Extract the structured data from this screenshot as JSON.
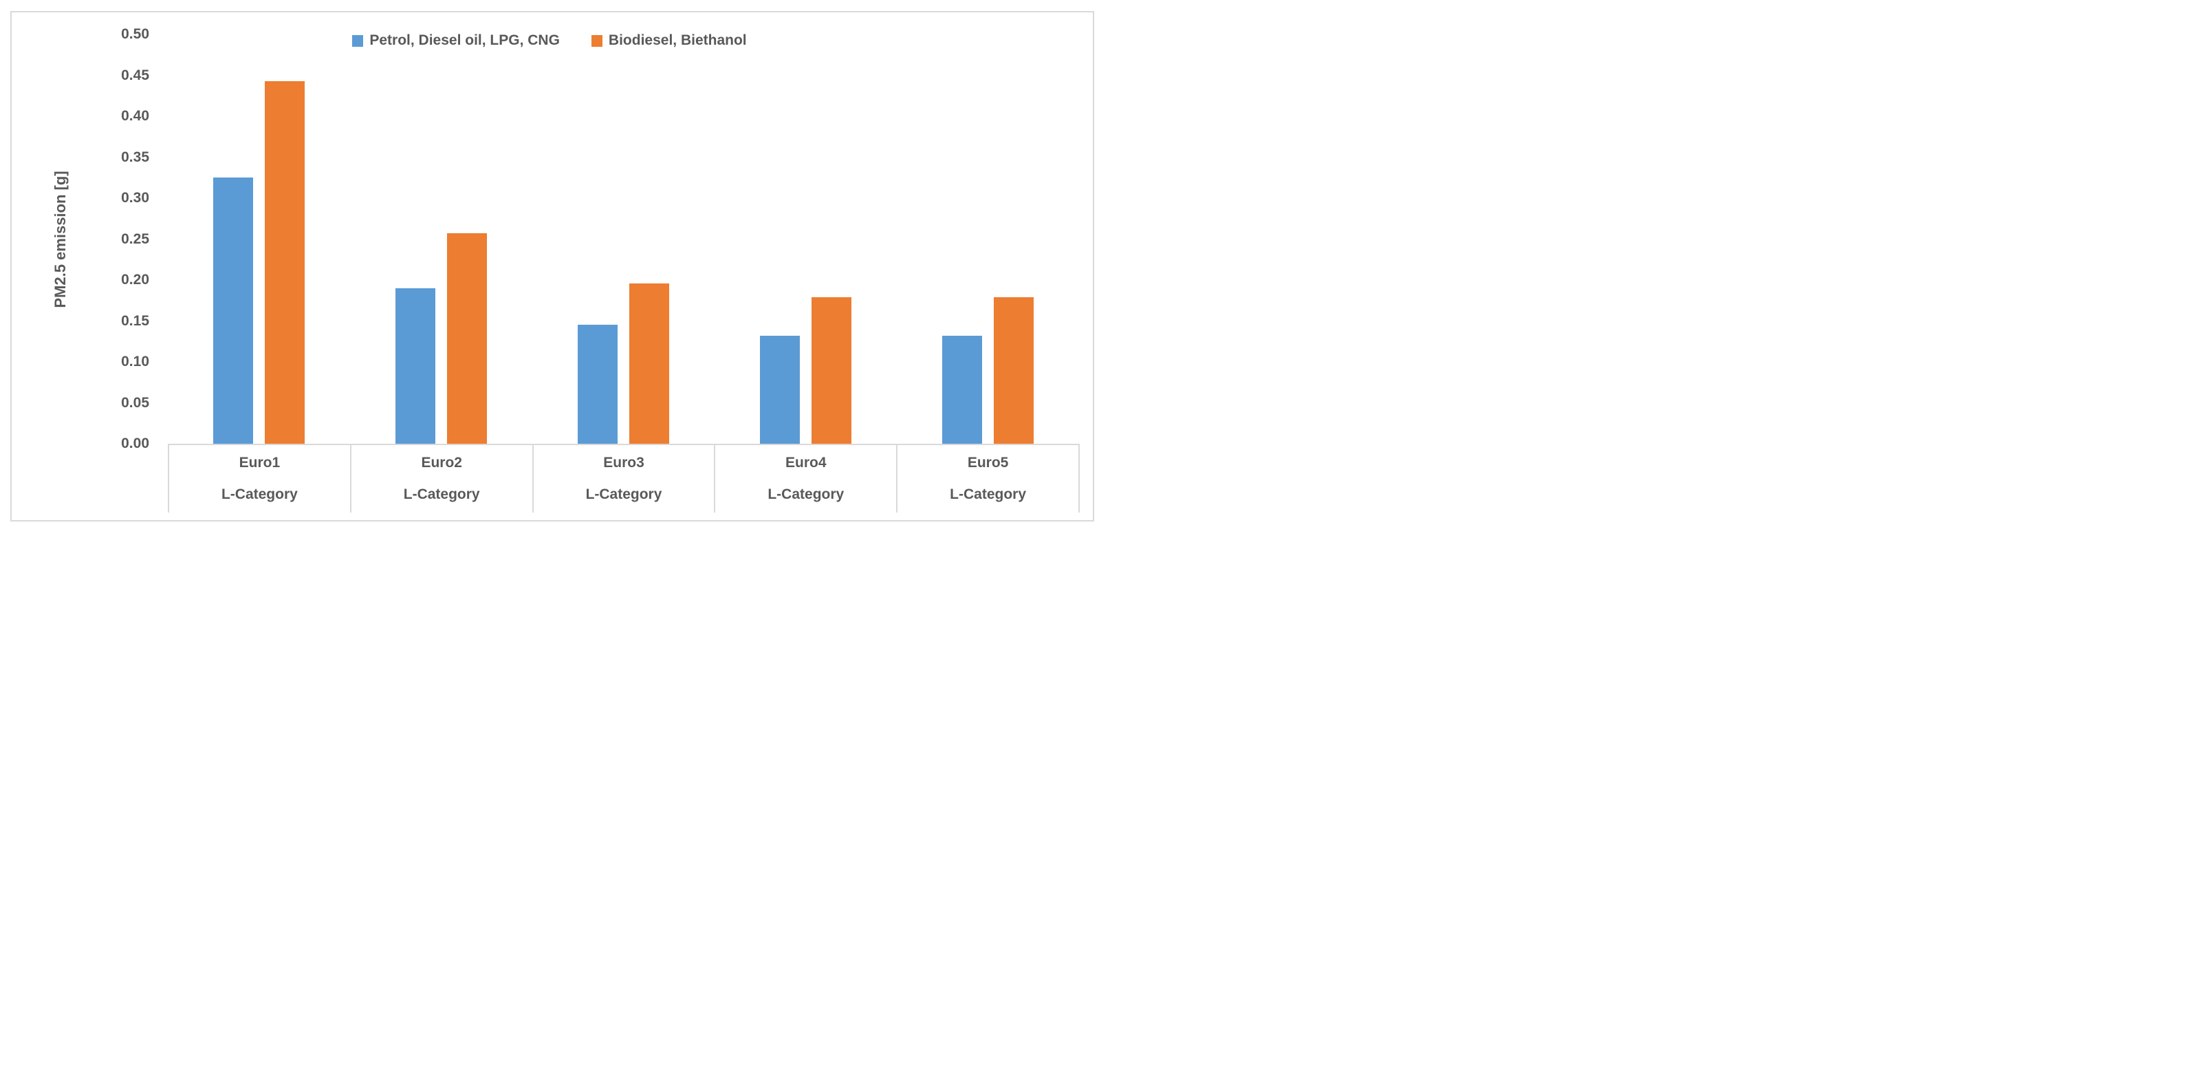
{
  "chart_data": {
    "type": "bar",
    "title": "",
    "ylabel": "PM2.5 emission [g]",
    "categories": [
      "Euro1",
      "Euro2",
      "Euro3",
      "Euro4",
      "Euro5"
    ],
    "category_sublabels": [
      "L-Category",
      "L-Category",
      "L-Category",
      "L-Category",
      "L-Category"
    ],
    "series": [
      {
        "name": "Petrol, Diesel oil, LPG, CNG",
        "color": "#5B9BD5",
        "values": [
          0.325,
          0.19,
          0.145,
          0.132,
          0.132
        ]
      },
      {
        "name": "Biodiesel, Biethanol",
        "color": "#ED7D31",
        "values": [
          0.443,
          0.257,
          0.196,
          0.179,
          0.179
        ]
      }
    ],
    "ylim": [
      0,
      0.5
    ],
    "ytick_step": 0.05,
    "ytick_labels": [
      "0.50",
      "0.45",
      "0.40",
      "0.35",
      "0.30",
      "0.25",
      "0.20",
      "0.15",
      "0.10",
      "0.05",
      "0.00"
    ],
    "grid": false,
    "legend_position": "top-center"
  },
  "colors": {
    "text": "#595959",
    "border": "#D9D9D9",
    "background": "#FFFFFF",
    "series_blue": "#5B9BD5",
    "series_orange": "#ED7D31"
  }
}
